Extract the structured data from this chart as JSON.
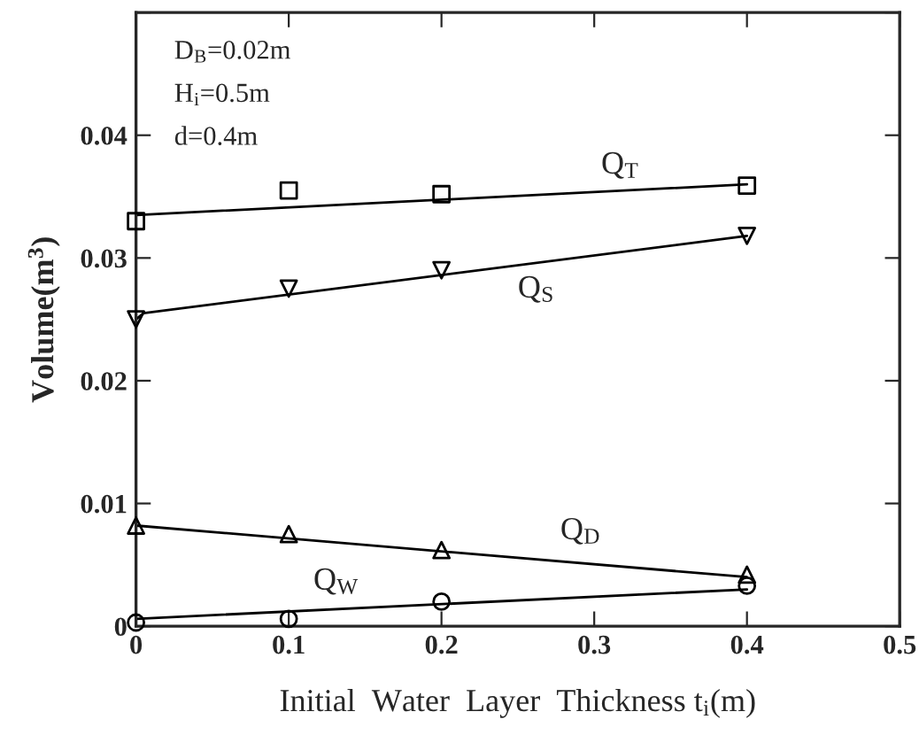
{
  "chart_data": {
    "type": "scatter",
    "xlabel": "Initial  Water  Layer  Thickness t$_{i}$(m)",
    "ylabel": "Volume(m$^{3}$)",
    "xlim": [
      0,
      0.5
    ],
    "ylim": [
      0,
      0.05
    ],
    "xticks": [
      0,
      0.1,
      0.2,
      0.3,
      0.4,
      0.5
    ],
    "yticks": [
      0,
      0.01,
      0.02,
      0.03,
      0.04,
      {
        "value": 0.05,
        "label": null
      }
    ],
    "grid": false,
    "legend": false,
    "series": [
      {
        "marker": "square",
        "color": "#000000",
        "x": [
          0,
          0.1,
          0.2,
          0.4
        ],
        "values": [
          0.033,
          0.0355,
          0.0352,
          0.0359
        ]
      },
      {
        "type": "line",
        "marker": "none",
        "color": "#000000",
        "x": [
          0,
          0.4
        ],
        "values": [
          0.0335,
          0.036
        ]
      },
      {
        "marker": "triangle_down",
        "color": "#000000",
        "x": [
          0,
          0.1,
          0.2,
          0.4
        ],
        "values": [
          0.025,
          0.0275,
          0.029,
          0.0318
        ]
      },
      {
        "type": "line",
        "marker": "none",
        "color": "#000000",
        "x": [
          0,
          0.005,
          0.4
        ],
        "values": [
          0.025,
          0.0255,
          0.0318
        ]
      },
      {
        "marker": "triangle",
        "color": "#000000",
        "x": [
          0,
          0.1,
          0.2,
          0.4
        ],
        "values": [
          0.0082,
          0.0075,
          0.0062,
          0.0042
        ]
      },
      {
        "type": "line",
        "marker": "none",
        "color": "#000000",
        "x": [
          0,
          0.4
        ],
        "values": [
          0.0082,
          0.004
        ]
      },
      {
        "marker": "circle",
        "color": "#000000",
        "x": [
          0,
          0.1,
          0.2,
          0.4
        ],
        "values": [
          0.0003,
          0.0006,
          0.002,
          0.0033
        ]
      },
      {
        "type": "line",
        "marker": "none",
        "color": "#000000",
        "x": [
          0,
          0.4
        ],
        "values": [
          0.0006,
          0.003
        ]
      }
    ],
    "annotations": [
      "D$_{B}$=0.02m",
      "H$_{i}$=0.5m",
      "d=0.4m",
      "Q$_{T}$",
      "Q$_{S}$",
      "Q$_{D}$",
      "Q$_{W}$"
    ]
  }
}
